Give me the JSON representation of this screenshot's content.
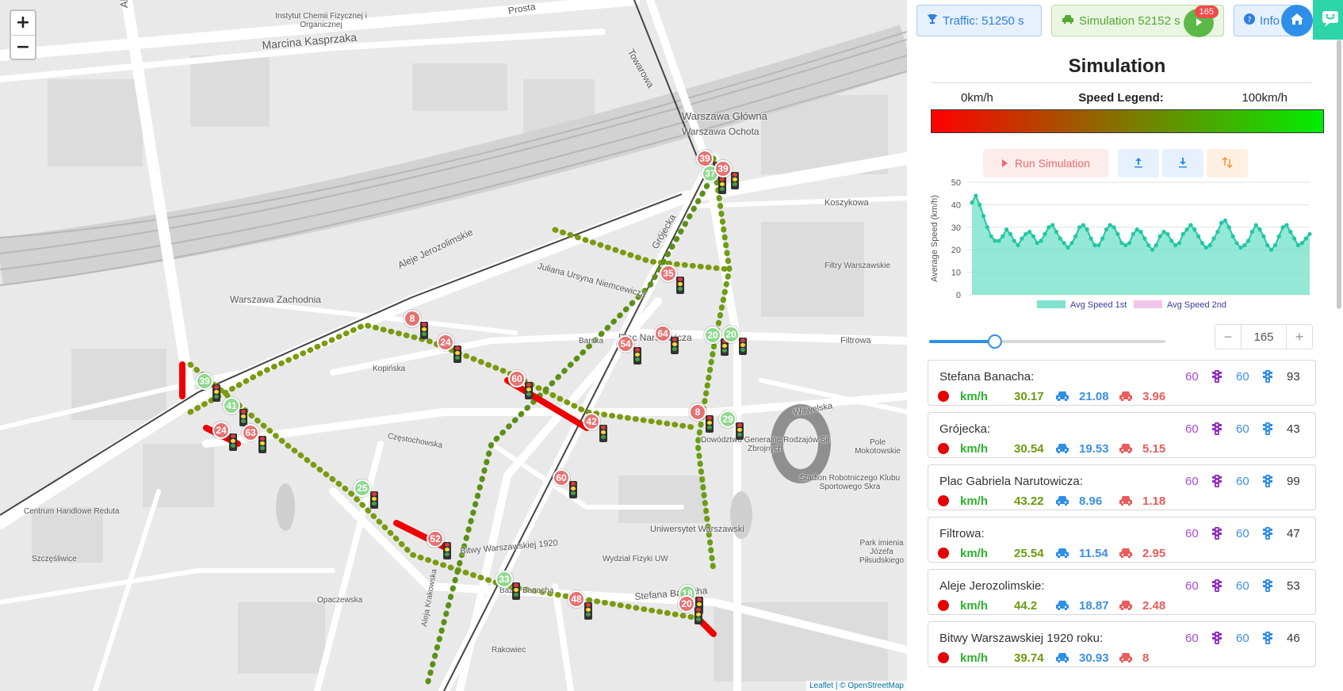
{
  "map": {
    "zoom_in": "+",
    "zoom_out": "−",
    "labels": [
      "Aleja Prymasa Tysiąclecia",
      "Marcina Kasprzaka",
      "Prosta",
      "Towarowa",
      "Warszawa Główna",
      "Warszawa Ochota",
      "Aleje Jerozolimskie",
      "Juliana Ursyna Niemcewicza",
      "Grójecka",
      "Plac Narutowicza",
      "Kopińska",
      "Częstochowska",
      "Wawelska",
      "Filtrowa",
      "Koszykowa",
      "Barska",
      "Bitwy Warszawskiej 1920",
      "Opaczewska",
      "Stefana Banacha",
      "Uniwersytet Warszawski",
      "Stadion Robotniczego Klubu Sportowego Skra",
      "Park imienia Józefa Piłsudskiego",
      "Warszawa Zachodnia",
      "Pole Mokotowskie",
      "Centrum Handlowe Reduta",
      "Szczęśliwice",
      "Instytut Chemii Fizycznej i Organicznej",
      "Filtry Warszawskie",
      "Dowództwo Generalne Rodzajów Sił Zbrojnych",
      "Wydział Fizyki UW",
      "Bazar Banacha",
      "Rakowiec",
      "Aleja Krakowska"
    ],
    "markers": [
      {
        "n": "39",
        "c": "r"
      },
      {
        "n": "37",
        "c": "g"
      },
      {
        "n": "39",
        "c": "r"
      },
      {
        "n": "35",
        "c": "r"
      },
      {
        "n": "8",
        "c": "r"
      },
      {
        "n": "24",
        "c": "r"
      },
      {
        "n": "64",
        "c": "r"
      },
      {
        "n": "54",
        "c": "r"
      },
      {
        "n": "20",
        "c": "g"
      },
      {
        "n": "20",
        "c": "g"
      },
      {
        "n": "39",
        "c": "g"
      },
      {
        "n": "60",
        "c": "r"
      },
      {
        "n": "41",
        "c": "g"
      },
      {
        "n": "24",
        "c": "r"
      },
      {
        "n": "63",
        "c": "r"
      },
      {
        "n": "42",
        "c": "r"
      },
      {
        "n": "8",
        "c": "r"
      },
      {
        "n": "29",
        "c": "g"
      },
      {
        "n": "25",
        "c": "g"
      },
      {
        "n": "60",
        "c": "r"
      },
      {
        "n": "52",
        "c": "r"
      },
      {
        "n": "33",
        "c": "g"
      },
      {
        "n": "48",
        "c": "r"
      },
      {
        "n": "18",
        "c": "g"
      },
      {
        "n": "20",
        "c": "r"
      }
    ],
    "attribution_leaflet": "Leaflet",
    "attribution_osm": " | © OpenStreetMap"
  },
  "topbar": {
    "traffic": "Traffic: 51250 s",
    "simulation": "Simulation 52152 s",
    "badge": "165",
    "info": "Info"
  },
  "panel": {
    "title": "Simulation",
    "legend_min": "0km/h",
    "legend_title": "Speed Legend:",
    "legend_max": "100km/h",
    "run_label": "Run Simulation",
    "stepper_value": "165",
    "stepper_minus": "−",
    "stepper_plus": "+"
  },
  "chart_data": {
    "type": "area",
    "ylabel": "Average Speed (km/h)",
    "ylim": [
      0,
      50
    ],
    "yticks": [
      0,
      10,
      20,
      30,
      40,
      50
    ],
    "series": [
      {
        "name": "Avg Speed 1st",
        "color": "#7fe3d0",
        "values": [
          41,
          44,
          40,
          35,
          30,
          26,
          24,
          24,
          26,
          29,
          27,
          24,
          22,
          25,
          27,
          28,
          26,
          23,
          24,
          27,
          30,
          31,
          28,
          25,
          23,
          21,
          23,
          26,
          30,
          31,
          29,
          25,
          22,
          22,
          25,
          29,
          31,
          30,
          27,
          23,
          22,
          23,
          27,
          29,
          28,
          25,
          22,
          20,
          22,
          26,
          28,
          27,
          24,
          22,
          23,
          27,
          29,
          31,
          29,
          26,
          23,
          21,
          22,
          25,
          28,
          32,
          33,
          30,
          26,
          23,
          21,
          22,
          24,
          28,
          31,
          29,
          26,
          22,
          20,
          22,
          26,
          30,
          31,
          28,
          25,
          22,
          23,
          25,
          27
        ]
      },
      {
        "name": "Avg Speed 2nd",
        "color": "#f2c6ec",
        "values": []
      }
    ]
  },
  "streets": [
    {
      "name": "Stefana Banacha:",
      "v1": "60",
      "v2": "60",
      "v3": "93",
      "speed": "30.17",
      "cnt": "21.08",
      "delay": "3.96"
    },
    {
      "name": "Grójecka:",
      "v1": "60",
      "v2": "60",
      "v3": "43",
      "speed": "30.54",
      "cnt": "19.53",
      "delay": "5.15"
    },
    {
      "name": "Plac Gabriela Narutowicza:",
      "v1": "60",
      "v2": "60",
      "v3": "99",
      "speed": "43.22",
      "cnt": "8.96",
      "delay": "1.18"
    },
    {
      "name": "Filtrowa:",
      "v1": "60",
      "v2": "60",
      "v3": "47",
      "speed": "25.54",
      "cnt": "11.54",
      "delay": "2.95"
    },
    {
      "name": "Aleje Jerozolimskie:",
      "v1": "60",
      "v2": "60",
      "v3": "53",
      "speed": "44.2",
      "cnt": "18.87",
      "delay": "2.48"
    },
    {
      "name": "Bitwy Warszawskiej 1920 roku:",
      "v1": "60",
      "v2": "60",
      "v3": "46",
      "speed": "39.74",
      "cnt": "30.93",
      "delay": "8"
    }
  ],
  "kmh_label": "km/h",
  "colors": {
    "accent_blue": "#2f8ee8",
    "green": "#5cb947",
    "red": "#ee4b4b",
    "teal": "#2dd4a8"
  }
}
